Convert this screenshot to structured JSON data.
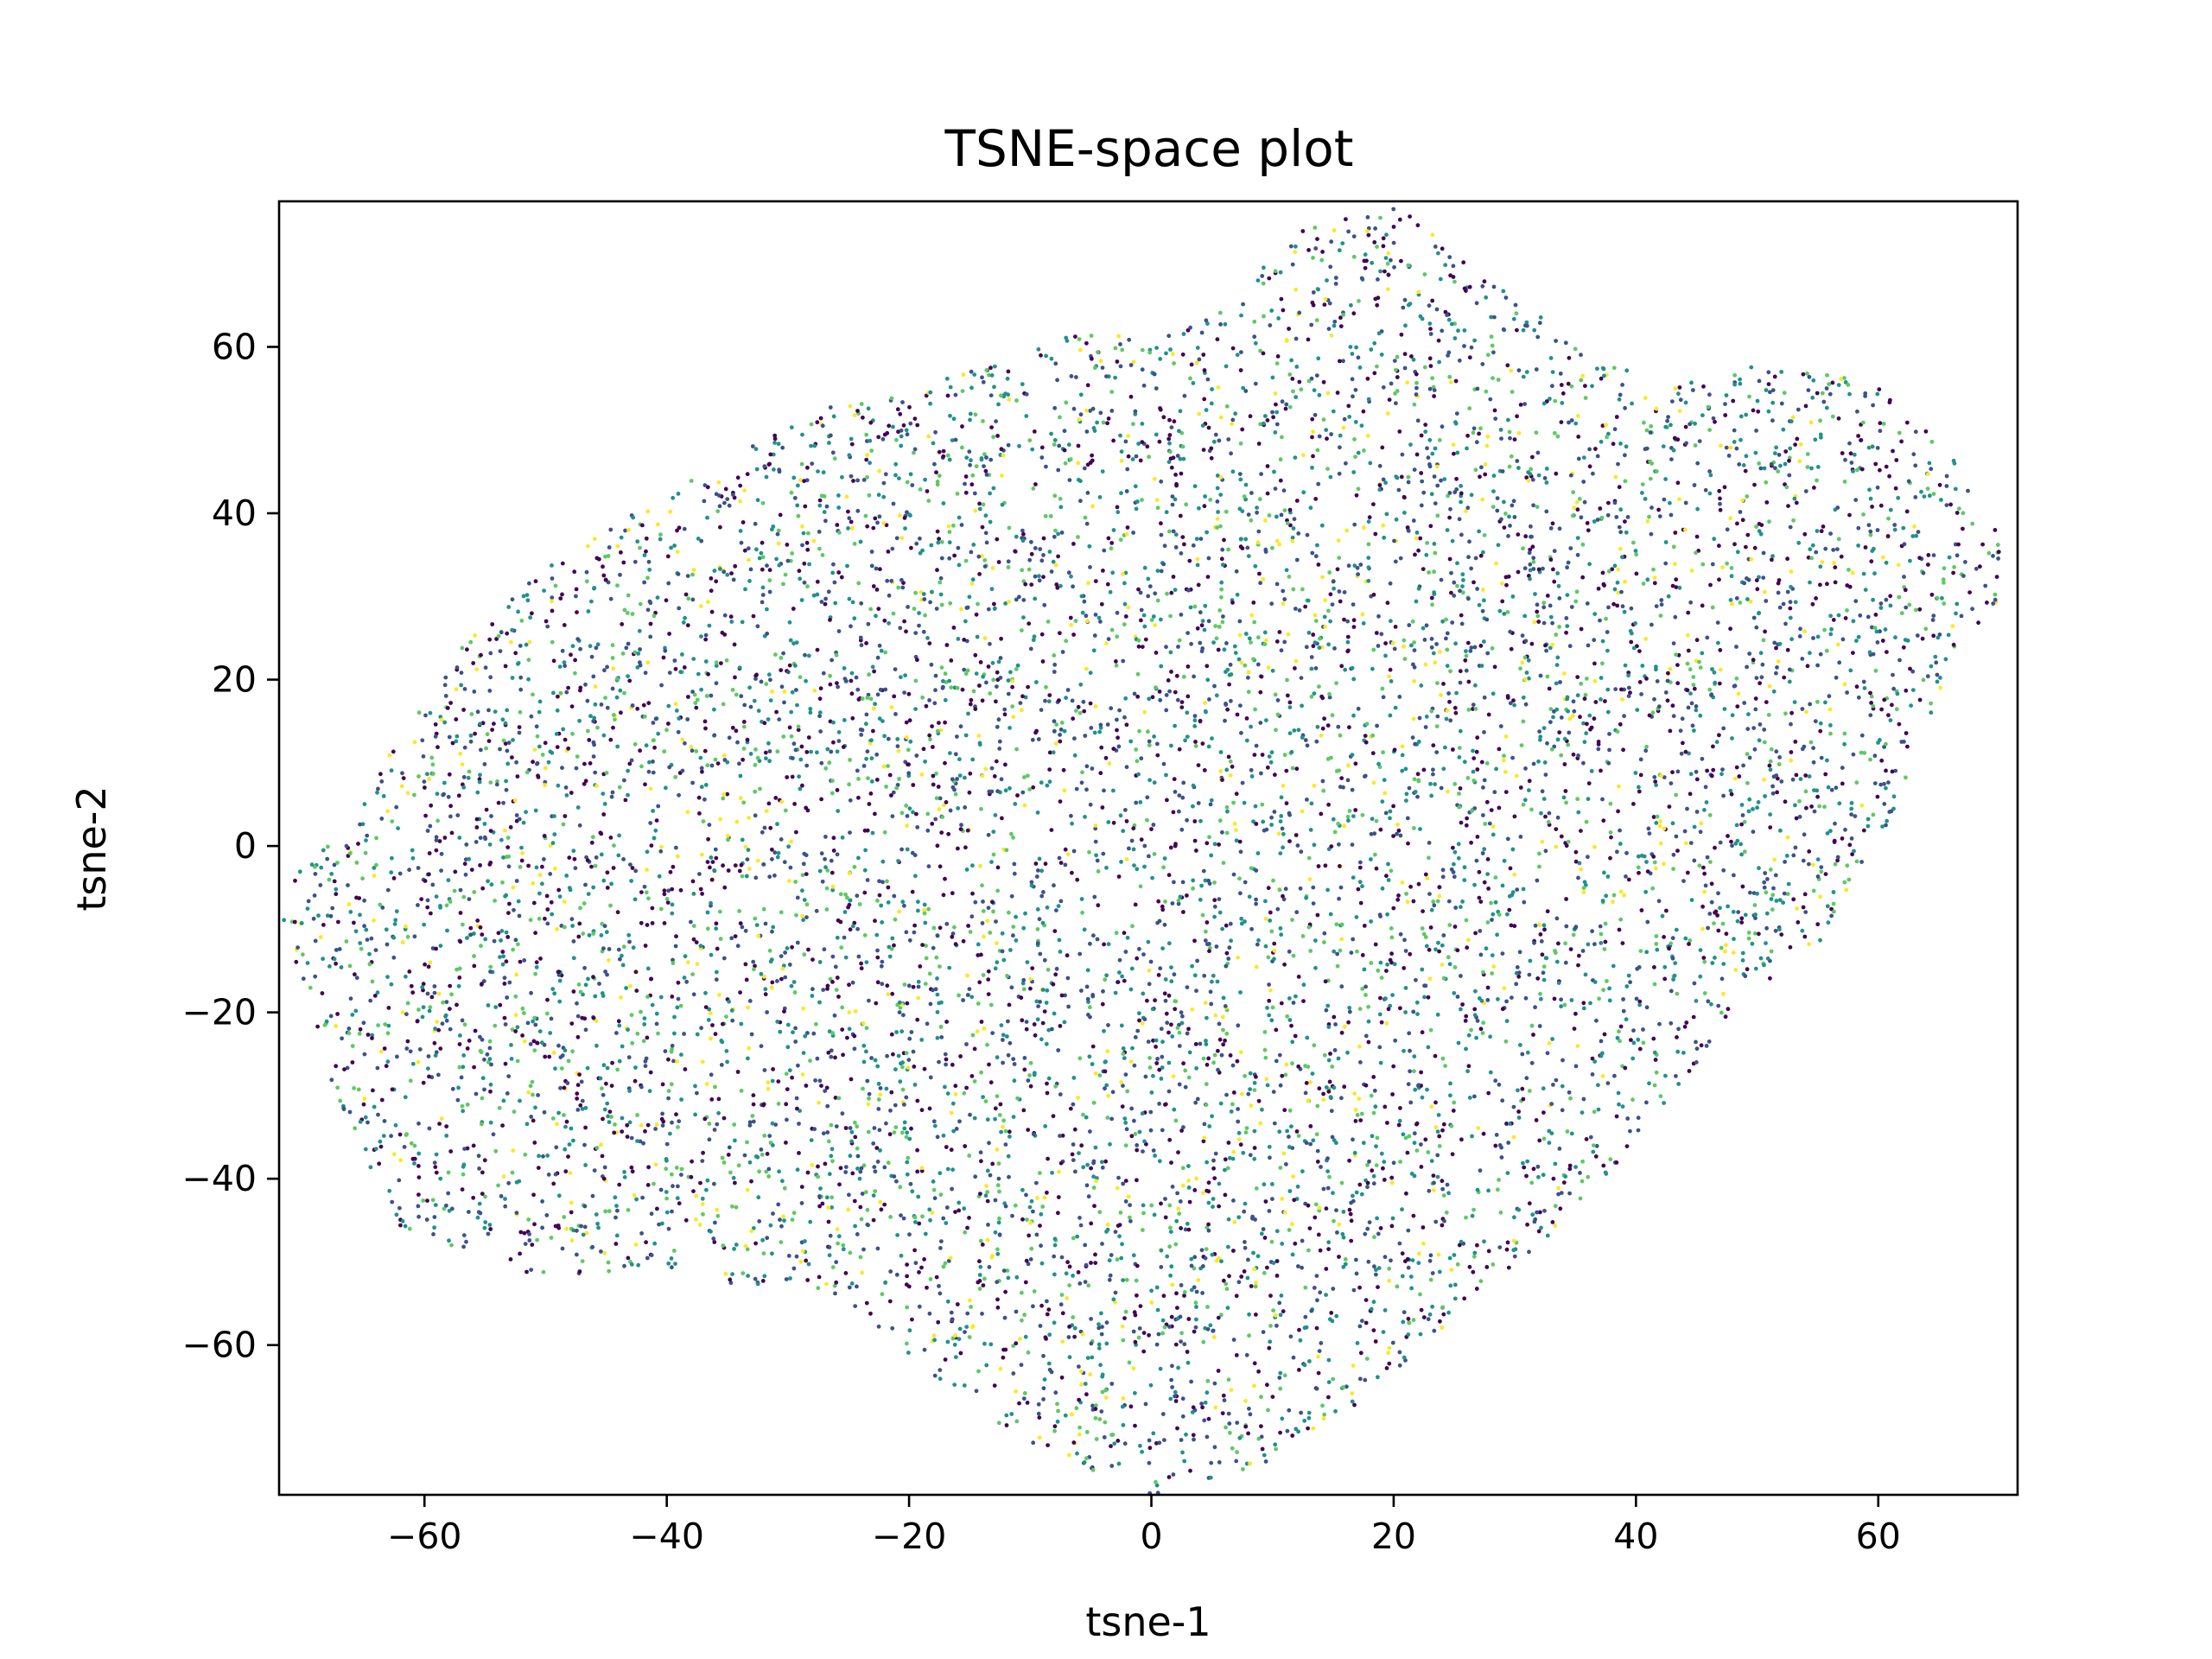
{
  "chart_data": {
    "type": "scatter",
    "title": "TSNE-space plot",
    "xlabel": "tsne-1",
    "ylabel": "tsne-2",
    "xlim": [
      -72,
      71.5
    ],
    "ylim": [
      -78,
      77.5
    ],
    "x_ticks": [
      -60,
      -40,
      -20,
      0,
      20,
      40,
      60
    ],
    "y_ticks": [
      -60,
      -40,
      -20,
      0,
      20,
      40,
      60
    ],
    "x_tick_labels": [
      "−60",
      "−40",
      "−20",
      "0",
      "20",
      "40",
      "60"
    ],
    "y_tick_labels": [
      "−60",
      "−40",
      "−20",
      "0",
      "20",
      "40",
      "60"
    ],
    "grid": false,
    "legend": "none",
    "colormap": [
      "#440154",
      "#3b528b",
      "#21918c",
      "#5ec962",
      "#fde725"
    ],
    "point_count": 9000,
    "cloud_outline": [
      [
        -72,
        -8
      ],
      [
        -68,
        -30
      ],
      [
        -62,
        -46
      ],
      [
        -50,
        -52
      ],
      [
        -38,
        -52
      ],
      [
        -26,
        -54
      ],
      [
        -18,
        -64
      ],
      [
        -10,
        -72
      ],
      [
        0,
        -78
      ],
      [
        10,
        -74
      ],
      [
        17,
        -67
      ],
      [
        24,
        -58
      ],
      [
        32,
        -48
      ],
      [
        40,
        -36
      ],
      [
        48,
        -20
      ],
      [
        55,
        -12
      ],
      [
        60,
        0
      ],
      [
        63,
        10
      ],
      [
        66,
        20
      ],
      [
        70,
        30
      ],
      [
        70,
        38
      ],
      [
        66,
        47
      ],
      [
        60,
        56
      ],
      [
        50,
        58
      ],
      [
        42,
        55
      ],
      [
        36,
        60
      ],
      [
        30,
        66
      ],
      [
        24,
        73
      ],
      [
        20,
        77
      ],
      [
        12,
        74
      ],
      [
        6,
        66
      ],
      [
        0,
        60
      ],
      [
        -4,
        62
      ],
      [
        -8,
        61
      ],
      [
        -12,
        58
      ],
      [
        -22,
        55
      ],
      [
        -28,
        52
      ],
      [
        -38,
        44
      ],
      [
        -48,
        36
      ],
      [
        -56,
        26
      ],
      [
        -62,
        14
      ],
      [
        -66,
        2
      ],
      [
        -70,
        -2
      ]
    ]
  }
}
